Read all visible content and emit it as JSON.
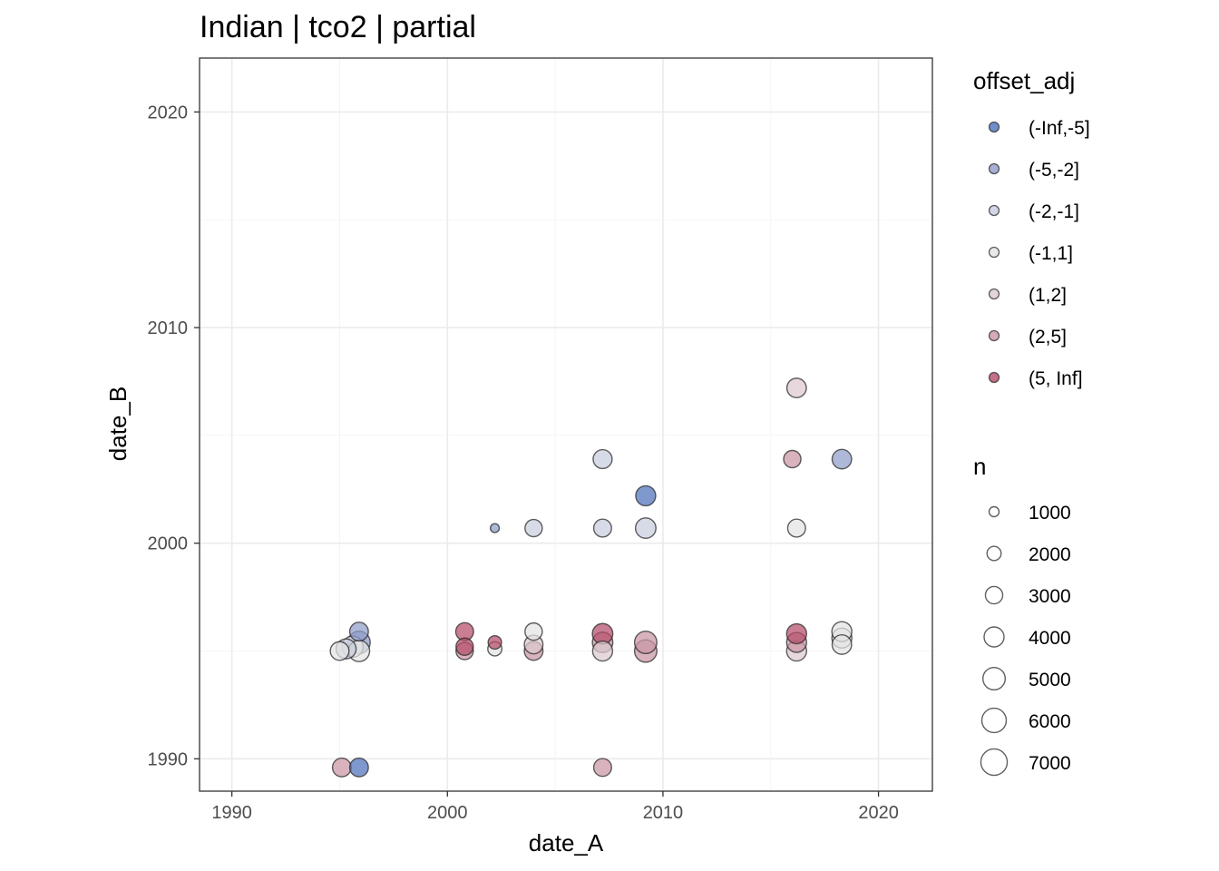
{
  "chart_data": {
    "type": "scatter",
    "title": "Indian | tco2 | partial",
    "xlabel": "date_A",
    "ylabel": "date_B",
    "xlim": [
      1988.5,
      2022.5
    ],
    "ylim": [
      1988.5,
      2022.5
    ],
    "xticks": [
      1990,
      2000,
      2010,
      2020
    ],
    "yticks": [
      1990,
      2000,
      2010,
      2020
    ],
    "xtick_labels": [
      "1990",
      "2000",
      "2010",
      "2020"
    ],
    "ytick_labels": [
      "1990",
      "2000",
      "2010",
      "2020"
    ],
    "grid": true,
    "legend_position": "right",
    "color_legend": {
      "title": "offset_adj",
      "items": [
        {
          "label": "(-Inf,-5]",
          "color": "#4d72bd"
        },
        {
          "label": "(-5,-2]",
          "color": "#8f9cc9"
        },
        {
          "label": "(-2,-1]",
          "color": "#c7ccde"
        },
        {
          "label": "(-1,1]",
          "color": "#e3e3e3"
        },
        {
          "label": "(1,2]",
          "color": "#dcc9cf"
        },
        {
          "label": "(2,5]",
          "color": "#c996a4"
        },
        {
          "label": "(5, Inf]",
          "color": "#b64c69"
        }
      ]
    },
    "size_legend": {
      "title": "n",
      "items": [
        {
          "label": "1000",
          "value": 1000
        },
        {
          "label": "2000",
          "value": 2000
        },
        {
          "label": "3000",
          "value": 3000
        },
        {
          "label": "4000",
          "value": 4000
        },
        {
          "label": "5000",
          "value": 5000
        },
        {
          "label": "6000",
          "value": 6000
        },
        {
          "label": "7000",
          "value": 7000
        }
      ]
    },
    "points": [
      {
        "x": 1995.0,
        "y": 1995.0,
        "n": 3500,
        "group": "(-1,1]"
      },
      {
        "x": 1995.3,
        "y": 1995.1,
        "n": 4000,
        "group": "(-2,-1]"
      },
      {
        "x": 1995.6,
        "y": 1995.2,
        "n": 4500,
        "group": "(-1,1]"
      },
      {
        "x": 1995.9,
        "y": 1995.0,
        "n": 4500,
        "group": "(-1,1]"
      },
      {
        "x": 1995.9,
        "y": 1995.4,
        "n": 5000,
        "group": "(-5,-2]"
      },
      {
        "x": 1995.9,
        "y": 1995.9,
        "n": 3500,
        "group": "(-5,-2]"
      },
      {
        "x": 1995.1,
        "y": 1989.6,
        "n": 3500,
        "group": "(2,5]"
      },
      {
        "x": 1995.9,
        "y": 1989.6,
        "n": 3500,
        "group": "(-Inf,-5]"
      },
      {
        "x": 2000.8,
        "y": 1995.0,
        "n": 3000,
        "group": "(2,5]"
      },
      {
        "x": 2000.8,
        "y": 1995.2,
        "n": 3000,
        "group": "(5, Inf]"
      },
      {
        "x": 2000.8,
        "y": 1995.9,
        "n": 3200,
        "group": "(5, Inf]"
      },
      {
        "x": 2002.2,
        "y": 1995.1,
        "n": 2000,
        "group": "(-1,1]"
      },
      {
        "x": 2002.2,
        "y": 1995.4,
        "n": 1800,
        "group": "(5, Inf]"
      },
      {
        "x": 2002.2,
        "y": 2000.7,
        "n": 800,
        "group": "(-5,-2]"
      },
      {
        "x": 2004.0,
        "y": 1995.0,
        "n": 3500,
        "group": "(2,5]"
      },
      {
        "x": 2004.0,
        "y": 1995.3,
        "n": 3500,
        "group": "(1,2]"
      },
      {
        "x": 2004.0,
        "y": 1995.9,
        "n": 3000,
        "group": "(-1,1]"
      },
      {
        "x": 2004.0,
        "y": 2000.7,
        "n": 3000,
        "group": "(-2,-1]"
      },
      {
        "x": 2007.2,
        "y": 1995.0,
        "n": 4000,
        "group": "(1,2]"
      },
      {
        "x": 2007.2,
        "y": 1995.4,
        "n": 4200,
        "group": "(2,5]"
      },
      {
        "x": 2007.2,
        "y": 1995.8,
        "n": 4200,
        "group": "(5, Inf]"
      },
      {
        "x": 2007.2,
        "y": 2000.7,
        "n": 3200,
        "group": "(-2,-1]"
      },
      {
        "x": 2007.2,
        "y": 2003.9,
        "n": 3600,
        "group": "(-2,-1]"
      },
      {
        "x": 2007.2,
        "y": 1989.6,
        "n": 3200,
        "group": "(2,5]"
      },
      {
        "x": 2009.2,
        "y": 1995.0,
        "n": 5000,
        "group": "(2,5]"
      },
      {
        "x": 2009.2,
        "y": 1995.4,
        "n": 5000,
        "group": "(2,5]"
      },
      {
        "x": 2009.2,
        "y": 2000.7,
        "n": 4200,
        "group": "(-2,-1]"
      },
      {
        "x": 2009.2,
        "y": 2002.2,
        "n": 4000,
        "group": "(-Inf,-5]"
      },
      {
        "x": 2016.2,
        "y": 1995.0,
        "n": 4000,
        "group": "(1,2]"
      },
      {
        "x": 2016.2,
        "y": 1995.4,
        "n": 4000,
        "group": "(2,5]"
      },
      {
        "x": 2016.2,
        "y": 1995.8,
        "n": 4000,
        "group": "(5, Inf]"
      },
      {
        "x": 2016.2,
        "y": 2000.7,
        "n": 3200,
        "group": "(-1,1]"
      },
      {
        "x": 2016.0,
        "y": 2003.9,
        "n": 3000,
        "group": "(2,5]"
      },
      {
        "x": 2016.2,
        "y": 2007.2,
        "n": 3800,
        "group": "(1,2]"
      },
      {
        "x": 2018.3,
        "y": 1995.3,
        "n": 3800,
        "group": "(-1,1]"
      },
      {
        "x": 2018.3,
        "y": 1995.6,
        "n": 4000,
        "group": "(-1,1]"
      },
      {
        "x": 2018.3,
        "y": 1995.9,
        "n": 4000,
        "group": "(-1,1]"
      },
      {
        "x": 2018.3,
        "y": 2003.9,
        "n": 3800,
        "group": "(-5,-2]"
      }
    ]
  }
}
